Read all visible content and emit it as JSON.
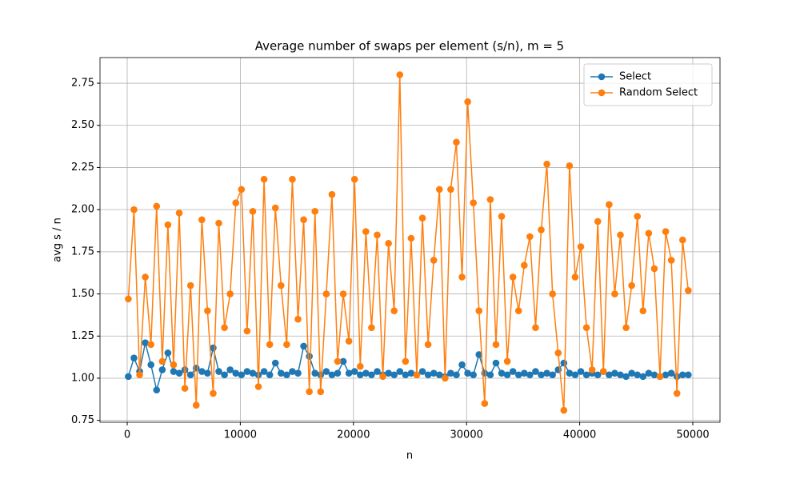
{
  "chart_data": {
    "type": "line",
    "title": "Average number of swaps per element (s/n), m = 5",
    "x_label": "n",
    "y_label": "avg s / n",
    "x": [
      100,
      600,
      1100,
      1600,
      2100,
      2600,
      3100,
      3600,
      4100,
      4600,
      5100,
      5600,
      6100,
      6600,
      7100,
      7600,
      8100,
      8600,
      9100,
      9600,
      10100,
      10600,
      11100,
      11600,
      12100,
      12600,
      13100,
      13600,
      14100,
      14600,
      15100,
      15600,
      16100,
      16600,
      17100,
      17600,
      18100,
      18600,
      19100,
      19600,
      20100,
      20600,
      21100,
      21600,
      22100,
      22600,
      23100,
      23600,
      24100,
      24600,
      25100,
      25600,
      26100,
      26600,
      27100,
      27600,
      28100,
      28600,
      29100,
      29600,
      30100,
      30600,
      31100,
      31600,
      32100,
      32600,
      33100,
      33600,
      34100,
      34600,
      35100,
      35600,
      36100,
      36600,
      37100,
      37600,
      38100,
      38600,
      39100,
      39600,
      40100,
      40600,
      41100,
      41600,
      42100,
      42600,
      43100,
      43600,
      44100,
      44600,
      45100,
      45600,
      46100,
      46600,
      47100,
      47600,
      48100,
      48600,
      49100,
      49600
    ],
    "series": [
      {
        "name": "Select",
        "color": "#1f77b4",
        "values": [
          1.01,
          1.12,
          1.04,
          1.21,
          1.08,
          0.93,
          1.05,
          1.15,
          1.04,
          1.03,
          1.05,
          1.02,
          1.06,
          1.04,
          1.03,
          1.18,
          1.04,
          1.02,
          1.05,
          1.03,
          1.02,
          1.04,
          1.03,
          1.02,
          1.04,
          1.02,
          1.09,
          1.03,
          1.02,
          1.04,
          1.03,
          1.19,
          1.13,
          1.03,
          1.02,
          1.04,
          1.02,
          1.03,
          1.1,
          1.03,
          1.04,
          1.02,
          1.03,
          1.02,
          1.04,
          1.02,
          1.03,
          1.02,
          1.04,
          1.02,
          1.03,
          1.02,
          1.04,
          1.02,
          1.03,
          1.02,
          1.01,
          1.03,
          1.02,
          1.08,
          1.03,
          1.02,
          1.14,
          1.03,
          1.02,
          1.09,
          1.03,
          1.02,
          1.04,
          1.02,
          1.03,
          1.02,
          1.04,
          1.02,
          1.03,
          1.02,
          1.05,
          1.09,
          1.03,
          1.02,
          1.04,
          1.02,
          1.03,
          1.02,
          1.04,
          1.02,
          1.03,
          1.02,
          1.01,
          1.03,
          1.02,
          1.01,
          1.03,
          1.02,
          1.01,
          1.02,
          1.03,
          1.01,
          1.02,
          1.02
        ]
      },
      {
        "name": "Random Select",
        "color": "#ff7f0e",
        "values": [
          1.47,
          2.0,
          1.02,
          1.6,
          1.2,
          2.02,
          1.1,
          1.91,
          1.08,
          1.98,
          0.94,
          1.55,
          0.84,
          1.94,
          1.4,
          0.91,
          1.92,
          1.3,
          1.5,
          2.04,
          2.12,
          1.28,
          1.99,
          0.95,
          2.18,
          1.2,
          2.01,
          1.55,
          1.2,
          2.18,
          1.35,
          1.94,
          0.92,
          1.99,
          0.92,
          1.5,
          2.09,
          1.1,
          1.5,
          1.22,
          2.18,
          1.07,
          1.87,
          1.3,
          1.85,
          1.01,
          1.8,
          1.4,
          2.8,
          1.1,
          1.83,
          1.02,
          1.95,
          1.2,
          1.7,
          2.12,
          1.0,
          2.12,
          2.4,
          1.6,
          2.64,
          2.04,
          1.4,
          0.85,
          2.06,
          1.2,
          1.96,
          1.1,
          1.6,
          1.4,
          1.67,
          1.84,
          1.3,
          1.88,
          2.27,
          1.5,
          1.15,
          0.81,
          2.26,
          1.6,
          1.78,
          1.3,
          1.05,
          1.93,
          1.04,
          2.03,
          1.5,
          1.85,
          1.3,
          1.55,
          1.96,
          1.4,
          1.86,
          1.65,
          1.01,
          1.87,
          1.7,
          0.91,
          1.82,
          1.52
        ]
      }
    ],
    "xlim": [
      -2404,
      52404
    ],
    "xticks": [
      0,
      10000,
      20000,
      30000,
      40000,
      50000
    ],
    "ylim": [
      0.739,
      2.902
    ],
    "yticks": [
      0.75,
      {
        "value": 1,
        "label": "1.00"
      },
      1.25,
      {
        "value": 1.5,
        "label": "1.50"
      },
      1.75,
      {
        "value": 2,
        "label": "2.00"
      },
      2.25,
      {
        "value": 2.5,
        "label": "2.50"
      },
      2.75
    ],
    "grid": true,
    "legend": "upper right"
  }
}
